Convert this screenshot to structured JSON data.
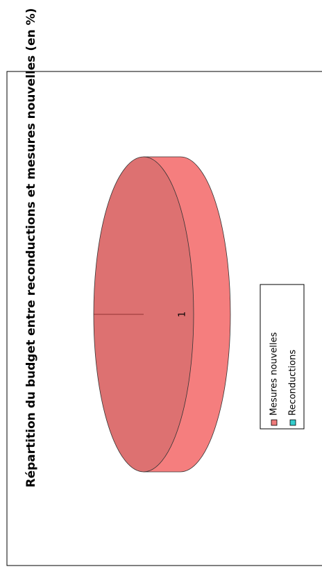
{
  "chart_data": {
    "type": "pie",
    "title": "Répartition du budget entre reconductions et mesures nouvelles (en %)",
    "categories": [
      "Mesures nouvelles",
      "Reconductions"
    ],
    "values": [
      1,
      0
    ],
    "colors": [
      "#ee7a7a",
      "#33cccc"
    ],
    "three_d": true,
    "legend": "right"
  }
}
